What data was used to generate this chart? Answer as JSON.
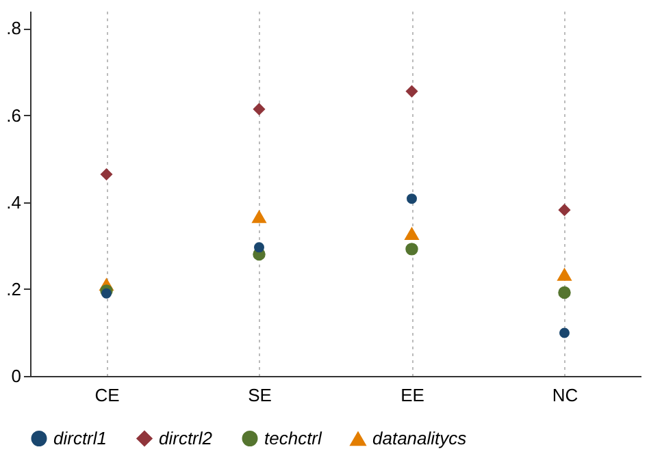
{
  "chart_data": {
    "type": "scatter",
    "categories": [
      "CE",
      "SE",
      "EE",
      "NC"
    ],
    "series": [
      {
        "name": "dirctrl1",
        "color": "#1a476f",
        "marker": "circle",
        "values": [
          0.19,
          0.296,
          0.408,
          0.099
        ]
      },
      {
        "name": "dirctrl2",
        "color": "#90353b",
        "marker": "diamond",
        "values": [
          0.464,
          0.614,
          0.655,
          0.382
        ]
      },
      {
        "name": "techctrl",
        "color": "#55752f",
        "marker": "circle",
        "values": [
          0.196,
          0.28,
          0.292,
          0.192
        ]
      },
      {
        "name": "datanalitycs",
        "color": "#e37e00",
        "marker": "triangle",
        "values": [
          0.21,
          0.366,
          0.327,
          0.233
        ]
      }
    ],
    "ylim": [
      0,
      0.84
    ],
    "yticks": [
      {
        "value": 0,
        "label": "0"
      },
      {
        "value": 0.2,
        "label": ".2"
      },
      {
        "value": 0.4,
        "label": ".4"
      },
      {
        "value": 0.6,
        "label": ".6"
      },
      {
        "value": 0.8,
        "label": ".8"
      }
    ],
    "grid": "x",
    "legend": "bottom"
  }
}
